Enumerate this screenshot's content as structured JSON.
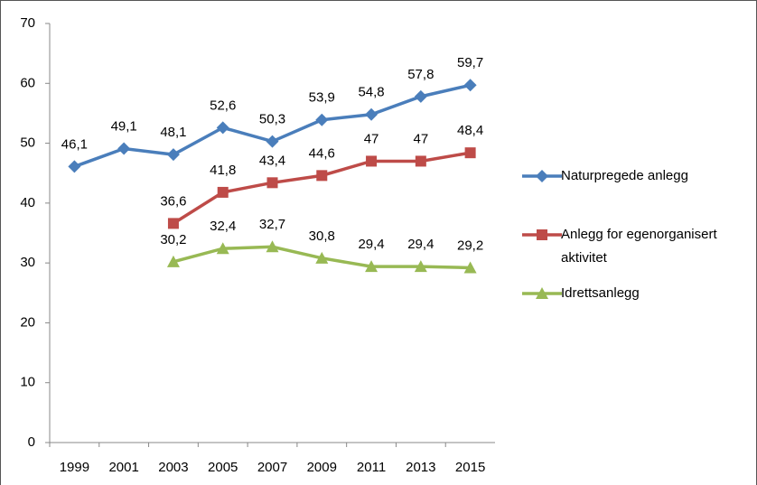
{
  "chart_data": {
    "type": "line",
    "categories": [
      "1999",
      "2001",
      "2003",
      "2005",
      "2007",
      "2009",
      "2011",
      "2013",
      "2015"
    ],
    "series": [
      {
        "name": "Naturpregede anlegg",
        "color": "#4a7ebb",
        "marker": "diamond",
        "values": [
          46.1,
          49.1,
          48.1,
          52.6,
          50.3,
          53.9,
          54.8,
          57.8,
          59.7
        ],
        "value_labels": [
          "46,1",
          "49,1",
          "48,1",
          "52,6",
          "50,3",
          "53,9",
          "54,8",
          "57,8",
          "59,7"
        ]
      },
      {
        "name": "Anlegg for egenorganisert aktivitet",
        "color": "#be4b48",
        "marker": "square",
        "values": [
          null,
          null,
          36.6,
          41.8,
          43.4,
          44.6,
          47,
          47,
          48.4
        ],
        "value_labels": [
          null,
          null,
          "36,6",
          "41,8",
          "43,4",
          "44,6",
          "47",
          "47",
          "48,4"
        ]
      },
      {
        "name": "Idrettsanlegg",
        "color": "#98b954",
        "marker": "triangle",
        "values": [
          null,
          null,
          30.2,
          32.4,
          32.7,
          30.8,
          29.4,
          29.4,
          29.2
        ],
        "value_labels": [
          null,
          null,
          "30,2",
          "32,4",
          "32,7",
          "30,8",
          "29,4",
          "29,4",
          "29,2"
        ]
      }
    ],
    "ylim": [
      0,
      70
    ],
    "yticks": [
      0,
      10,
      20,
      30,
      40,
      50,
      60,
      70
    ],
    "legend": "right"
  }
}
